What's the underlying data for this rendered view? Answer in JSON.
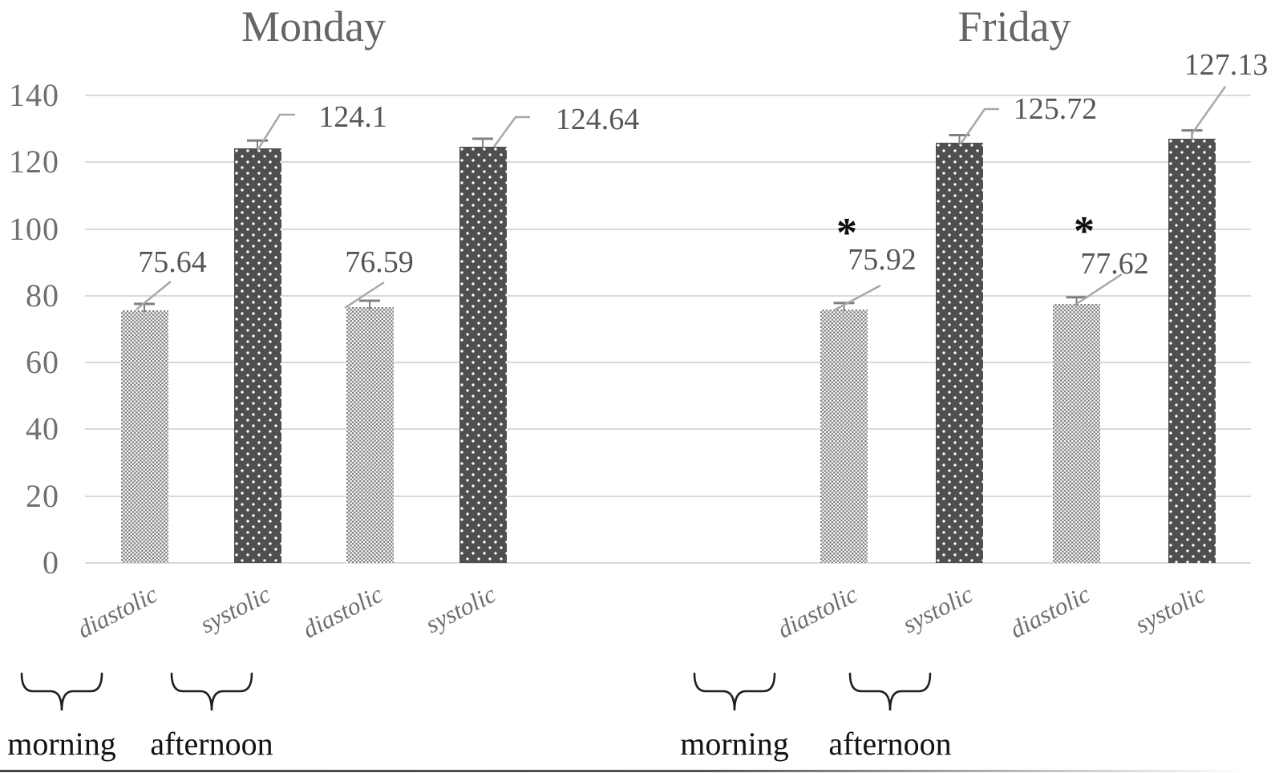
{
  "chart_data": {
    "type": "bar",
    "title": "",
    "xlabel": "",
    "ylabel": "",
    "ylim": [
      0,
      140
    ],
    "yticks": [
      0,
      20,
      40,
      60,
      80,
      100,
      120,
      140
    ],
    "grid": true,
    "legend": "none",
    "significance_marker": "*",
    "error_bars": true,
    "groups": [
      {
        "title": "Monday",
        "periods": [
          {
            "label": "morning",
            "bars": [
              {
                "category": "diastolic",
                "value": 75.64,
                "label": "75.64",
                "significant": false
              },
              {
                "category": "systolic",
                "value": 124.1,
                "label": "124.1",
                "significant": false
              }
            ]
          },
          {
            "label": "afternoon",
            "bars": [
              {
                "category": "diastolic",
                "value": 76.59,
                "label": "76.59",
                "significant": false
              },
              {
                "category": "systolic",
                "value": 124.64,
                "label": "124.64",
                "significant": false
              }
            ]
          }
        ]
      },
      {
        "title": "Friday",
        "periods": [
          {
            "label": "morning",
            "bars": [
              {
                "category": "diastolic",
                "value": 75.92,
                "label": "75.92",
                "significant": true
              },
              {
                "category": "systolic",
                "value": 125.72,
                "label": "125.72",
                "significant": false
              }
            ]
          },
          {
            "label": "afternoon",
            "bars": [
              {
                "category": "diastolic",
                "value": 77.62,
                "label": "77.62",
                "significant": true
              },
              {
                "category": "systolic",
                "value": 127.13,
                "label": "127.13",
                "significant": false
              }
            ]
          }
        ]
      }
    ],
    "series_styles": {
      "diastolic": "light-checkerboard-pattern",
      "systolic": "dark-white-dotted-pattern"
    },
    "colors": {
      "bar_dark": "#4f4f4f",
      "bar_light_check": "#7d7d7d",
      "gridline": "#d9d9d9",
      "tick_text": "#6f6f6f",
      "data_label_text": "#565656",
      "category_text": "#6e6e6e",
      "period_text": "#121212",
      "day_title_text": "#656565",
      "leader_line": "#a8a8a8",
      "error_bar": "#808080",
      "brace": "#1f1f1f",
      "asterisk": "#0d0d0d"
    }
  }
}
